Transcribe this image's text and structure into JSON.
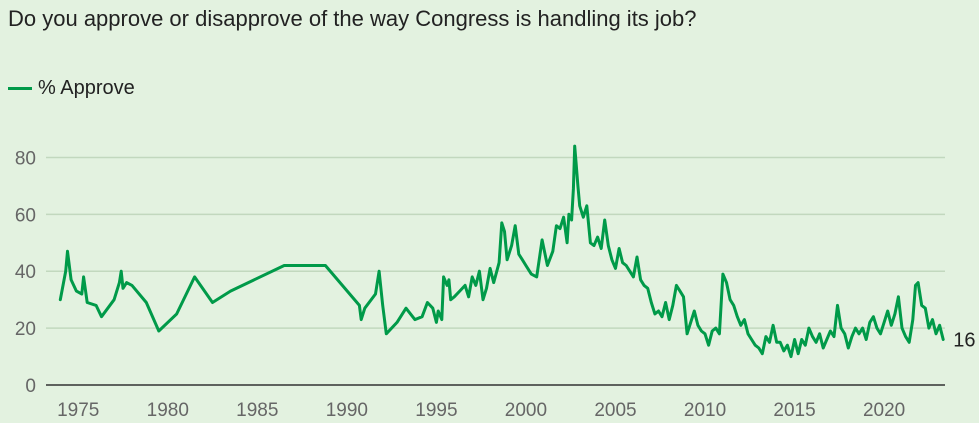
{
  "chart_data": {
    "type": "line",
    "title": "Do you approve or disapprove of the way Congress is handling its job?",
    "xlabel": "",
    "ylabel": "",
    "xlim": [
      1973.2,
      2023.4
    ],
    "ylim": [
      0,
      90
    ],
    "x_ticks": [
      1975,
      1980,
      1985,
      1990,
      1995,
      2000,
      2005,
      2010,
      2015,
      2020
    ],
    "y_ticks": [
      0,
      20,
      40,
      60,
      80
    ],
    "grid": "horizontal",
    "legend_position": "top-left",
    "end_label": "16",
    "series": [
      {
        "name": "% Approve",
        "color": "#009a49",
        "points": [
          [
            1974.0,
            30
          ],
          [
            1974.3,
            40
          ],
          [
            1974.4,
            47
          ],
          [
            1974.6,
            37
          ],
          [
            1974.9,
            33
          ],
          [
            1975.2,
            32
          ],
          [
            1975.3,
            38
          ],
          [
            1975.5,
            29
          ],
          [
            1976.0,
            28
          ],
          [
            1976.3,
            24
          ],
          [
            1977.0,
            30
          ],
          [
            1977.3,
            36
          ],
          [
            1977.4,
            40
          ],
          [
            1977.5,
            34
          ],
          [
            1977.7,
            36
          ],
          [
            1978.0,
            35
          ],
          [
            1978.8,
            29
          ],
          [
            1979.5,
            19
          ],
          [
            1980.5,
            25
          ],
          [
            1981.5,
            38
          ],
          [
            1982.5,
            29
          ],
          [
            1983.5,
            33
          ],
          [
            1986.5,
            42
          ],
          [
            1988.8,
            42
          ],
          [
            1990.7,
            28
          ],
          [
            1990.8,
            23
          ],
          [
            1991.0,
            27
          ],
          [
            1991.6,
            32
          ],
          [
            1991.8,
            40
          ],
          [
            1992.0,
            28
          ],
          [
            1992.2,
            18
          ],
          [
            1992.8,
            22
          ],
          [
            1993.3,
            27
          ],
          [
            1993.8,
            23
          ],
          [
            1994.2,
            24
          ],
          [
            1994.5,
            29
          ],
          [
            1994.8,
            27
          ],
          [
            1995.0,
            22
          ],
          [
            1995.1,
            26
          ],
          [
            1995.3,
            23
          ],
          [
            1995.4,
            38
          ],
          [
            1995.6,
            35
          ],
          [
            1995.7,
            37
          ],
          [
            1995.8,
            30
          ],
          [
            1996.0,
            31
          ],
          [
            1996.3,
            33
          ],
          [
            1996.6,
            35
          ],
          [
            1996.8,
            31
          ],
          [
            1997.0,
            38
          ],
          [
            1997.2,
            35
          ],
          [
            1997.4,
            40
          ],
          [
            1997.6,
            30
          ],
          [
            1997.8,
            34
          ],
          [
            1998.0,
            41
          ],
          [
            1998.2,
            36
          ],
          [
            1998.5,
            43
          ],
          [
            1998.65,
            57
          ],
          [
            1998.8,
            54
          ],
          [
            1998.95,
            44
          ],
          [
            1999.2,
            49
          ],
          [
            1999.4,
            56
          ],
          [
            1999.6,
            46
          ],
          [
            1999.8,
            44
          ],
          [
            2000.0,
            42
          ],
          [
            2000.3,
            39
          ],
          [
            2000.6,
            38
          ],
          [
            2000.9,
            51
          ],
          [
            2001.2,
            42
          ],
          [
            2001.5,
            47
          ],
          [
            2001.7,
            56
          ],
          [
            2001.9,
            55
          ],
          [
            2002.1,
            59
          ],
          [
            2002.3,
            50
          ],
          [
            2002.4,
            60
          ],
          [
            2002.55,
            58
          ],
          [
            2002.65,
            69
          ],
          [
            2002.72,
            84
          ],
          [
            2002.8,
            78
          ],
          [
            2002.9,
            70
          ],
          [
            2003.0,
            63
          ],
          [
            2003.2,
            59
          ],
          [
            2003.4,
            63
          ],
          [
            2003.6,
            50
          ],
          [
            2003.8,
            49
          ],
          [
            2004.0,
            52
          ],
          [
            2004.2,
            48
          ],
          [
            2004.4,
            58
          ],
          [
            2004.6,
            49
          ],
          [
            2004.8,
            44
          ],
          [
            2005.0,
            41
          ],
          [
            2005.2,
            48
          ],
          [
            2005.4,
            43
          ],
          [
            2005.6,
            42
          ],
          [
            2005.8,
            40
          ],
          [
            2006.0,
            38
          ],
          [
            2006.2,
            45
          ],
          [
            2006.4,
            37
          ],
          [
            2006.6,
            35
          ],
          [
            2006.8,
            34
          ],
          [
            2007.0,
            29
          ],
          [
            2007.2,
            25
          ],
          [
            2007.4,
            26
          ],
          [
            2007.6,
            24
          ],
          [
            2007.8,
            29
          ],
          [
            2008.0,
            23
          ],
          [
            2008.2,
            28
          ],
          [
            2008.4,
            35
          ],
          [
            2008.6,
            33
          ],
          [
            2008.8,
            31
          ],
          [
            2009.0,
            18
          ],
          [
            2009.2,
            22
          ],
          [
            2009.4,
            26
          ],
          [
            2009.6,
            21
          ],
          [
            2009.8,
            19
          ],
          [
            2010.0,
            18
          ],
          [
            2010.2,
            14
          ],
          [
            2010.4,
            19
          ],
          [
            2010.6,
            20
          ],
          [
            2010.8,
            18
          ],
          [
            2011.0,
            39
          ],
          [
            2011.2,
            36
          ],
          [
            2011.4,
            30
          ],
          [
            2011.6,
            28
          ],
          [
            2011.8,
            24
          ],
          [
            2012.0,
            21
          ],
          [
            2012.2,
            23
          ],
          [
            2012.4,
            18
          ],
          [
            2012.6,
            16
          ],
          [
            2012.8,
            14
          ],
          [
            2013.0,
            13
          ],
          [
            2013.2,
            11
          ],
          [
            2013.4,
            17
          ],
          [
            2013.6,
            15
          ],
          [
            2013.8,
            21
          ],
          [
            2014.0,
            15
          ],
          [
            2014.2,
            15
          ],
          [
            2014.4,
            12
          ],
          [
            2014.6,
            14
          ],
          [
            2014.8,
            10
          ],
          [
            2015.0,
            16
          ],
          [
            2015.2,
            11
          ],
          [
            2015.4,
            16
          ],
          [
            2015.6,
            14
          ],
          [
            2015.8,
            20
          ],
          [
            2016.0,
            17
          ],
          [
            2016.2,
            15
          ],
          [
            2016.4,
            18
          ],
          [
            2016.6,
            13
          ],
          [
            2016.8,
            16
          ],
          [
            2017.0,
            19
          ],
          [
            2017.2,
            17
          ],
          [
            2017.4,
            28
          ],
          [
            2017.6,
            20
          ],
          [
            2017.8,
            18
          ],
          [
            2018.0,
            13
          ],
          [
            2018.2,
            17
          ],
          [
            2018.4,
            20
          ],
          [
            2018.6,
            18
          ],
          [
            2018.8,
            20
          ],
          [
            2019.0,
            16
          ],
          [
            2019.2,
            22
          ],
          [
            2019.4,
            24
          ],
          [
            2019.6,
            20
          ],
          [
            2019.8,
            18
          ],
          [
            2020.0,
            22
          ],
          [
            2020.2,
            26
          ],
          [
            2020.4,
            21
          ],
          [
            2020.6,
            25
          ],
          [
            2020.8,
            31
          ],
          [
            2021.0,
            20
          ],
          [
            2021.2,
            17
          ],
          [
            2021.4,
            15
          ],
          [
            2021.6,
            23
          ],
          [
            2021.75,
            35
          ],
          [
            2021.9,
            36
          ],
          [
            2022.1,
            28
          ],
          [
            2022.3,
            27
          ],
          [
            2022.5,
            20
          ],
          [
            2022.7,
            23
          ],
          [
            2022.9,
            18
          ],
          [
            2023.1,
            21
          ],
          [
            2023.3,
            16
          ]
        ]
      }
    ]
  }
}
